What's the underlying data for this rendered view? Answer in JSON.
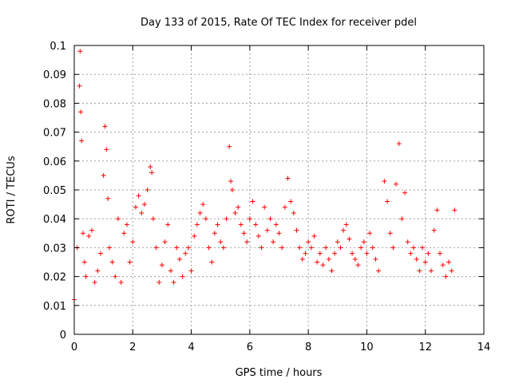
{
  "chart_data": {
    "type": "scatter",
    "title": "Day 133 of 2015, Rate Of TEC Index for receiver pdel",
    "xlabel": "GPS time / hours",
    "ylabel": "ROTI / TECUs",
    "xlim": [
      0,
      14
    ],
    "ylim": [
      0,
      0.1
    ],
    "x_ticks": [
      "0",
      "2",
      "4",
      "6",
      "8",
      "10",
      "12",
      "14"
    ],
    "y_ticks": [
      "0",
      "0.01",
      "0.02",
      "0.03",
      "0.04",
      "0.05",
      "0.06",
      "0.07",
      "0.08",
      "0.09",
      "0.1"
    ],
    "grid": true,
    "marker": "+",
    "color": "#ff0000",
    "series": [
      {
        "name": "ROTI",
        "x": [
          0.0,
          0.1,
          0.18,
          0.2,
          0.22,
          0.25,
          0.3,
          0.35,
          0.4,
          0.5,
          0.6,
          0.7,
          0.8,
          0.9,
          1.0,
          1.05,
          1.1,
          1.15,
          1.2,
          1.3,
          1.4,
          1.5,
          1.6,
          1.7,
          1.8,
          1.9,
          2.0,
          2.1,
          2.2,
          2.3,
          2.4,
          2.5,
          2.6,
          2.65,
          2.7,
          2.8,
          2.9,
          3.0,
          3.1,
          3.2,
          3.3,
          3.4,
          3.5,
          3.6,
          3.7,
          3.8,
          3.9,
          4.0,
          4.1,
          4.2,
          4.3,
          4.4,
          4.5,
          4.6,
          4.7,
          4.8,
          4.9,
          5.0,
          5.1,
          5.2,
          5.3,
          5.35,
          5.4,
          5.5,
          5.6,
          5.7,
          5.8,
          5.9,
          6.0,
          6.1,
          6.2,
          6.3,
          6.4,
          6.5,
          6.6,
          6.7,
          6.8,
          6.9,
          7.0,
          7.1,
          7.2,
          7.3,
          7.4,
          7.5,
          7.6,
          7.7,
          7.8,
          7.9,
          8.0,
          8.1,
          8.2,
          8.3,
          8.4,
          8.5,
          8.6,
          8.7,
          8.8,
          8.9,
          9.0,
          9.1,
          9.2,
          9.3,
          9.4,
          9.5,
          9.6,
          9.7,
          9.8,
          9.9,
          10.0,
          10.1,
          10.2,
          10.3,
          10.4,
          10.6,
          10.7,
          10.8,
          10.9,
          11.0,
          11.1,
          11.2,
          11.3,
          11.4,
          11.5,
          11.6,
          11.7,
          11.8,
          11.9,
          12.0,
          12.1,
          12.2,
          12.3,
          12.4,
          12.5,
          12.6,
          12.7,
          12.8,
          12.9,
          13.0
        ],
        "y": [
          0.012,
          0.03,
          0.086,
          0.098,
          0.077,
          0.067,
          0.035,
          0.025,
          0.02,
          0.034,
          0.036,
          0.018,
          0.022,
          0.028,
          0.055,
          0.072,
          0.064,
          0.047,
          0.03,
          0.025,
          0.02,
          0.04,
          0.018,
          0.035,
          0.038,
          0.025,
          0.032,
          0.044,
          0.048,
          0.042,
          0.045,
          0.05,
          0.058,
          0.056,
          0.04,
          0.03,
          0.018,
          0.024,
          0.032,
          0.038,
          0.022,
          0.018,
          0.03,
          0.026,
          0.02,
          0.028,
          0.03,
          0.022,
          0.034,
          0.038,
          0.042,
          0.045,
          0.04,
          0.03,
          0.025,
          0.035,
          0.038,
          0.032,
          0.03,
          0.04,
          0.065,
          0.053,
          0.05,
          0.042,
          0.044,
          0.038,
          0.035,
          0.032,
          0.04,
          0.046,
          0.038,
          0.034,
          0.03,
          0.044,
          0.036,
          0.04,
          0.032,
          0.038,
          0.035,
          0.03,
          0.044,
          0.054,
          0.046,
          0.042,
          0.036,
          0.03,
          0.026,
          0.028,
          0.032,
          0.03,
          0.034,
          0.025,
          0.028,
          0.024,
          0.03,
          0.026,
          0.022,
          0.028,
          0.032,
          0.03,
          0.036,
          0.038,
          0.033,
          0.028,
          0.026,
          0.024,
          0.03,
          0.032,
          0.028,
          0.035,
          0.03,
          0.026,
          0.022,
          0.053,
          0.046,
          0.035,
          0.03,
          0.052,
          0.066,
          0.04,
          0.049,
          0.032,
          0.028,
          0.03,
          0.026,
          0.022,
          0.03,
          0.025,
          0.028,
          0.022,
          0.036,
          0.043,
          0.028,
          0.024,
          0.02,
          0.025,
          0.022,
          0.043
        ]
      }
    ]
  }
}
